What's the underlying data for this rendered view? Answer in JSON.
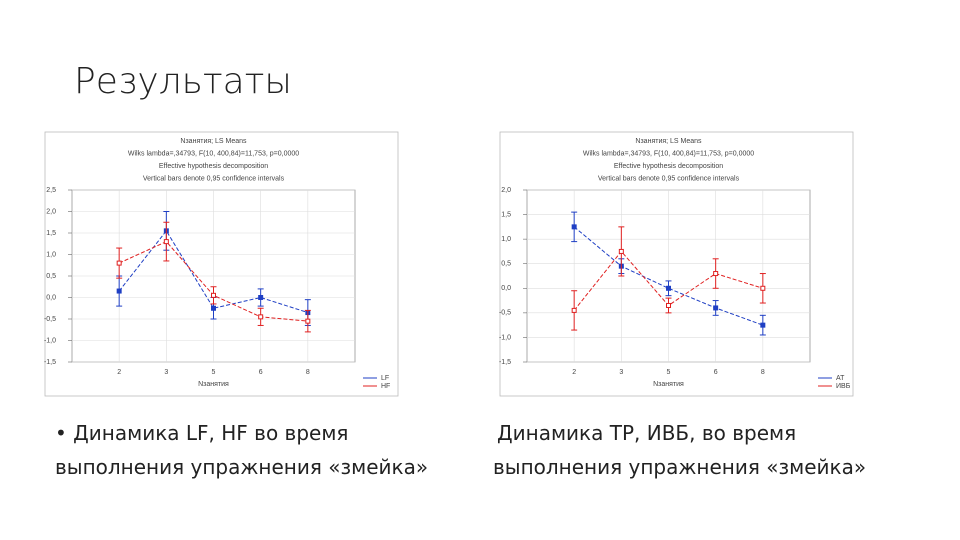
{
  "slide_title": "Результаты",
  "captions": [
    [
      "• Динамика LF, HF во время",
      "выполнения упражнения «змейка»"
    ],
    [
      "Динамика ТР, ИВБ, во время",
      "выполнения упражнения «змейка»"
    ]
  ],
  "chart_data": [
    {
      "type": "line",
      "header": [
        "Nзанятия; LS Means",
        "Wilks lambda=,34793, F(10, 400,84)=11,753, p=0,0000",
        "Effective hypothesis decomposition",
        "Vertical bars denote 0,95 confidence intervals"
      ],
      "x_label": "Nзанятия",
      "categories": [
        "2",
        "3",
        "5",
        "6",
        "8"
      ],
      "ylim": [
        -1.5,
        2.5
      ],
      "yticks": [
        {
          "value": -1.5,
          "label": "-1,5"
        },
        {
          "value": -1,
          "label": "-1,0"
        },
        {
          "value": -0.5,
          "label": "-0,5"
        },
        {
          "value": 0,
          "label": "0,0"
        },
        {
          "value": 0.5,
          "label": "0,5"
        },
        {
          "value": 1,
          "label": "1,0"
        },
        {
          "value": 1.5,
          "label": "1,5"
        },
        {
          "value": 2,
          "label": "2,0"
        },
        {
          "value": 2.5,
          "label": "2,5"
        }
      ],
      "grid": true,
      "legend": "bottom-right",
      "series": [
        {
          "name": "LF",
          "color": "#1f3fc4",
          "values": [
            0.15,
            1.55,
            -0.25,
            0.0,
            -0.35
          ],
          "errors": [
            0.35,
            0.45,
            0.25,
            0.2,
            0.3
          ]
        },
        {
          "name": "HF",
          "color": "#e02020",
          "values": [
            0.8,
            1.3,
            0.05,
            -0.45,
            -0.55
          ],
          "errors": [
            0.35,
            0.45,
            0.2,
            0.2,
            0.25
          ]
        }
      ]
    },
    {
      "type": "line",
      "header": [
        "Nзанятия; LS Means",
        "Wilks lambda=,34793, F(10, 400,84)=11,753, p=0,0000",
        "Effective hypothesis decomposition",
        "Vertical bars denote 0,95 confidence intervals"
      ],
      "x_label": "Nзанятия",
      "categories": [
        "2",
        "3",
        "5",
        "6",
        "8"
      ],
      "ylim": [
        -1.5,
        2
      ],
      "yticks": [
        {
          "value": -1.5,
          "label": "-1,5"
        },
        {
          "value": -1,
          "label": "-1,0"
        },
        {
          "value": -0.5,
          "label": "-0,5"
        },
        {
          "value": 0,
          "label": "0,0"
        },
        {
          "value": 0.5,
          "label": "0,5"
        },
        {
          "value": 1,
          "label": "1,0"
        },
        {
          "value": 1.5,
          "label": "1,5"
        },
        {
          "value": 2,
          "label": "2,0"
        }
      ],
      "grid": true,
      "legend": "bottom-right",
      "series": [
        {
          "name": "AT",
          "color": "#1f3fc4",
          "values": [
            1.25,
            0.45,
            0.0,
            -0.4,
            -0.75
          ],
          "errors": [
            0.3,
            0.15,
            0.15,
            0.15,
            0.2
          ]
        },
        {
          "name": "ИВБ",
          "color": "#e02020",
          "values": [
            -0.45,
            0.75,
            -0.35,
            0.3,
            0.0
          ],
          "errors": [
            0.4,
            0.5,
            0.15,
            0.3,
            0.3
          ]
        }
      ]
    }
  ]
}
